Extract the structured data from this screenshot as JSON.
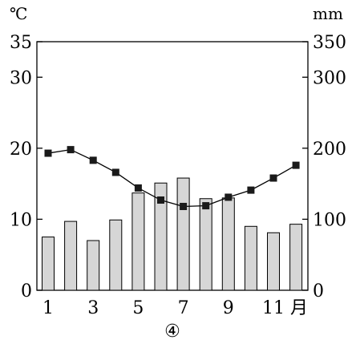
{
  "chart_data": {
    "type": "bar-line",
    "left_unit": "℃",
    "right_unit": "mm",
    "month_unit": "月",
    "caption": "④",
    "left_ticks": [
      0,
      10,
      20,
      30,
      35
    ],
    "right_ticks": [
      0,
      100,
      200,
      300,
      350
    ],
    "x_tick_labels": [
      "1",
      "3",
      "5",
      "7",
      "9",
      "11"
    ],
    "months": [
      1,
      2,
      3,
      4,
      5,
      6,
      7,
      8,
      9,
      10,
      11,
      12
    ],
    "precipitation_mm": [
      75,
      97,
      70,
      99,
      137,
      151,
      158,
      129,
      130,
      90,
      81,
      93
    ],
    "temperature_c": [
      19.3,
      19.8,
      18.3,
      16.6,
      14.4,
      12.7,
      11.8,
      11.9,
      13.1,
      14.1,
      15.8,
      17.6
    ],
    "left_ylim": [
      0,
      35
    ],
    "right_ylim": [
      0,
      350
    ],
    "grid": false
  }
}
